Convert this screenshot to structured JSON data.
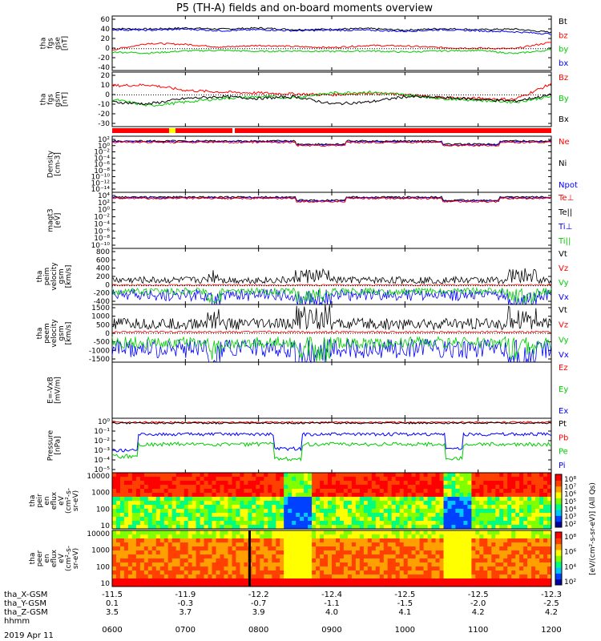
{
  "title": "P5 (TH-A) fields and on-board moments overview",
  "chart_data": {
    "type": "line",
    "title": "P5 (TH-A) fields and on-board moments overview",
    "time_ticks": [
      "0600",
      "0700",
      "0800",
      "0900",
      "1000",
      "1100",
      "1200"
    ],
    "date_label": "2019 Apr 11",
    "ephemeris": {
      "labels": [
        "tha_X-GSM",
        "tha_Y-GSM",
        "tha_Z-GSM",
        "hhmm"
      ],
      "rows": [
        [
          "-11.5",
          "-11.9",
          "-12.2",
          "-12.4",
          "-12.5",
          "-12.5",
          "-12.3"
        ],
        [
          "0.1",
          "-0.3",
          "-0.7",
          "-1.1",
          "-1.5",
          "-2.0",
          "-2.5"
        ],
        [
          "3.5",
          "3.7",
          "3.9",
          "4.0",
          "4.1",
          "4.2",
          "4.2"
        ]
      ]
    },
    "bar_colors": {
      "red": "#ff0000",
      "yellow": "#ffff00"
    },
    "panels": [
      {
        "id": "fgs-gse",
        "ylabel": [
          "tha",
          "fgs",
          "gse",
          "[nT]"
        ],
        "yticks": [
          "60",
          "40",
          "20",
          "0",
          "-20",
          "-40"
        ],
        "ylim": [
          -40,
          60
        ],
        "legend": [
          {
            "name": "Bt",
            "color": "#000000"
          },
          {
            "name": "bz",
            "color": "#ff0000"
          },
          {
            "name": "by",
            "color": "#00cc00"
          },
          {
            "name": "bx",
            "color": "#0000ff"
          }
        ],
        "series": [
          {
            "name": "Bt",
            "color": "#000000",
            "x": [
              0,
              0.5,
              1,
              1.5,
              2,
              2.5,
              3,
              3.5,
              4,
              4.5,
              5,
              5.5,
              6
            ],
            "values": [
              37,
              36,
              38,
              36,
              38,
              35,
              36,
              37,
              34,
              37,
              35,
              36,
              30
            ]
          },
          {
            "name": "bz",
            "color": "#ff0000",
            "x": [
              0,
              0.5,
              1,
              1.5,
              2,
              2.5,
              3,
              3.5,
              4,
              4.5,
              5,
              5.5,
              6
            ],
            "values": [
              -2,
              10,
              8,
              3,
              6,
              4,
              2,
              6,
              5,
              2,
              1,
              0,
              12
            ]
          },
          {
            "name": "by",
            "color": "#00cc00",
            "x": [
              0,
              0.5,
              1,
              1.5,
              2,
              2.5,
              3,
              3.5,
              4,
              4.5,
              5,
              5.5,
              6
            ],
            "values": [
              -6,
              -8,
              -4,
              -3,
              -5,
              -4,
              -5,
              -4,
              -6,
              -4,
              -3,
              -9,
              -2
            ]
          },
          {
            "name": "bx",
            "color": "#0000ff",
            "x": [
              0,
              0.5,
              1,
              1.5,
              2,
              2.5,
              3,
              3.5,
              4,
              4.5,
              5,
              5.5,
              6
            ],
            "values": [
              35,
              34,
              36,
              33,
              35,
              33,
              34,
              34,
              32,
              35,
              33,
              31,
              27
            ]
          }
        ]
      },
      {
        "id": "fgs-gsm",
        "ylabel": [
          "tha",
          "fgs",
          "gsm",
          "[nT]"
        ],
        "yticks": [
          "20",
          "10",
          "0",
          "-10",
          "-20",
          "-30"
        ],
        "ylim": [
          -35,
          25
        ],
        "legend": [
          {
            "name": "Bz",
            "color": "#ff0000"
          },
          {
            "name": "By",
            "color": "#00cc00"
          },
          {
            "name": "Bx",
            "color": "#000000"
          }
        ],
        "series": [
          {
            "name": "Bz",
            "color": "#ff0000",
            "x": [
              0,
              0.5,
              1,
              1.5,
              2,
              2.5,
              3,
              3.5,
              4,
              4.5,
              5,
              5.5,
              6
            ],
            "values": [
              10,
              11,
              5,
              3,
              2,
              1,
              0,
              2,
              0,
              -3,
              -4,
              -5,
              12
            ]
          },
          {
            "name": "By",
            "color": "#00cc00",
            "x": [
              0,
              0.5,
              1,
              1.5,
              2,
              2.5,
              3,
              3.5,
              4,
              4.5,
              5,
              5.5,
              6
            ],
            "values": [
              -5,
              -12,
              -8,
              -4,
              -2,
              -3,
              2,
              3,
              0,
              -4,
              -6,
              -8,
              -2
            ]
          },
          {
            "name": "Bx",
            "color": "#000000",
            "x": [
              0,
              0.5,
              1,
              1.5,
              2,
              2.5,
              3,
              3.5,
              4,
              4.5,
              5,
              5.5,
              6
            ],
            "values": [
              -8,
              -10,
              -4,
              -2,
              -4,
              -2,
              -10,
              -8,
              -2,
              -3,
              -5,
              -7,
              0
            ]
          }
        ]
      },
      {
        "id": "density",
        "ylabel": [
          "Density",
          "[cm-3]"
        ],
        "yticks": [
          "10²",
          "10⁰",
          "10⁻²",
          "10⁻⁴",
          "10⁻⁶",
          "10⁻⁸",
          "10⁻¹⁰",
          "10⁻¹²",
          "10⁻¹⁴"
        ],
        "log": true,
        "legend": [
          {
            "name": "Ne",
            "color": "#ff0000"
          },
          {
            "name": "Ni",
            "color": "#000000"
          },
          {
            "name": "Npot",
            "color": "#0000ff"
          }
        ]
      },
      {
        "id": "temperature",
        "ylabel": [
          "magt3",
          "[eV]"
        ],
        "yticks": [
          "10⁴",
          "10²",
          "10⁰",
          "10⁻²",
          "10⁻⁴",
          "10⁻⁶",
          "10⁻⁸",
          "10⁻¹⁰"
        ],
        "log": true,
        "legend": [
          {
            "name": "Te⊥",
            "color": "#ff0000"
          },
          {
            "name": "Te||",
            "color": "#000000"
          },
          {
            "name": "Ti⊥",
            "color": "#0000ff"
          },
          {
            "name": "Ti||",
            "color": "#00cc00"
          }
        ]
      },
      {
        "id": "peim-velocity",
        "ylabel": [
          "tha",
          "peim",
          "velocity",
          "gsm",
          "[km/s]"
        ],
        "yticks": [
          "800",
          "600",
          "400",
          "200",
          "0",
          "-200",
          "-400"
        ],
        "ylim": [
          -400,
          800
        ],
        "legend": [
          {
            "name": "Vt",
            "color": "#000000"
          },
          {
            "name": "Vz",
            "color": "#ff0000"
          },
          {
            "name": "Vy",
            "color": "#00cc00"
          },
          {
            "name": "Vx",
            "color": "#0000ff"
          }
        ]
      },
      {
        "id": "peem-velocity",
        "ylabel": [
          "tha",
          "peem",
          "velocity",
          "gsm",
          "[km/s]"
        ],
        "yticks": [
          "1500",
          "1000",
          "500",
          "0",
          "-500",
          "-1000",
          "-1500"
        ],
        "ylim": [
          -1500,
          1500
        ],
        "legend": [
          {
            "name": "Vt",
            "color": "#000000"
          },
          {
            "name": "Vz",
            "color": "#ff0000"
          },
          {
            "name": "Vy",
            "color": "#00cc00"
          },
          {
            "name": "Vx",
            "color": "#0000ff"
          }
        ]
      },
      {
        "id": "efield",
        "ylabel": [
          "E=-VxB",
          "[mV/m]"
        ],
        "yticks": [],
        "legend": [
          {
            "name": "Ez",
            "color": "#ff0000"
          },
          {
            "name": "Ey",
            "color": "#00cc00"
          },
          {
            "name": "Ex",
            "color": "#0000ff"
          }
        ]
      },
      {
        "id": "pressure",
        "ylabel": [
          "Pressure",
          "[nPa]"
        ],
        "yticks": [
          "10⁰",
          "10⁻¹",
          "10⁻²",
          "10⁻³",
          "10⁻⁴",
          "10⁻⁵"
        ],
        "log": true,
        "legend": [
          {
            "name": "Pt",
            "color": "#000000"
          },
          {
            "name": "Pb",
            "color": "#ff0000"
          },
          {
            "name": "Pe",
            "color": "#00cc00"
          },
          {
            "name": "Pi",
            "color": "#0000ff"
          }
        ]
      },
      {
        "id": "peir-spec",
        "ylabel": [
          "tha",
          "peir",
          "en",
          "eflux",
          "eV",
          "(cm²-s-",
          "sr-eV)"
        ],
        "yticks": [
          "10000",
          "1000",
          "100",
          "10"
        ],
        "colorbar_ticks": [
          "10⁸",
          "10⁷",
          "10⁶",
          "10⁵",
          "10⁴",
          "10³",
          "10²"
        ],
        "colorbar_label": "[eV/(cm²-s-sr-eV)] (All Qs)"
      },
      {
        "id": "peer-spec",
        "ylabel": [
          "tha",
          "peer",
          "en",
          "eflux",
          "eV",
          "(cm²-s-",
          "sr-eV)"
        ],
        "yticks": [
          "10000",
          "1000",
          "100",
          "10"
        ],
        "colorbar_ticks": [
          "10⁸",
          "10⁶",
          "10⁴",
          "10²"
        ],
        "colorbar_label": "[eV/(cm²-s-sr-eV)] (All Qs)"
      }
    ]
  }
}
